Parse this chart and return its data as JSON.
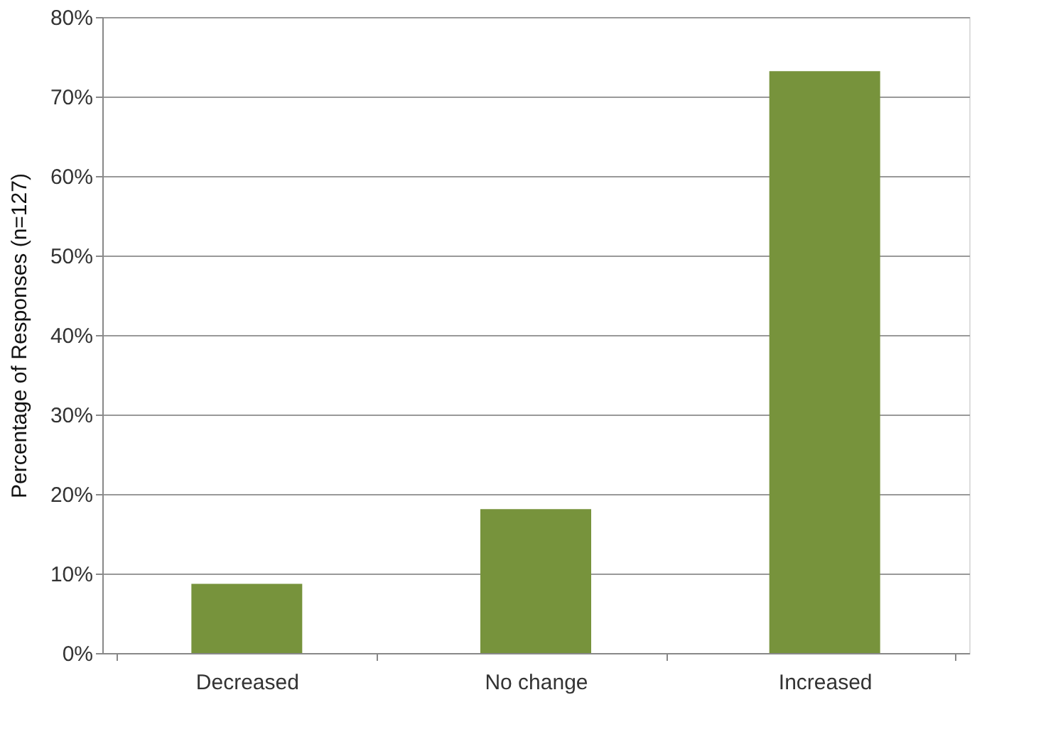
{
  "chart_data": {
    "type": "bar",
    "ylabel": "Percentage of Responses (n=127)",
    "categories": [
      "Decreased",
      "No change",
      "Increased"
    ],
    "values": [
      8.7,
      18.1,
      73.2
    ],
    "color": "#77933c",
    "ylim": [
      0,
      80
    ],
    "yticks": [
      {
        "value": 0,
        "label": "0%"
      },
      {
        "value": 10,
        "label": "10%"
      },
      {
        "value": 20,
        "label": "20%"
      },
      {
        "value": 30,
        "label": "30%"
      },
      {
        "value": 40,
        "label": "40%"
      },
      {
        "value": 50,
        "label": "50%"
      },
      {
        "value": 60,
        "label": "60%"
      },
      {
        "value": 70,
        "label": "70%"
      },
      {
        "value": 80,
        "label": "80%"
      }
    ],
    "grid": "y"
  }
}
